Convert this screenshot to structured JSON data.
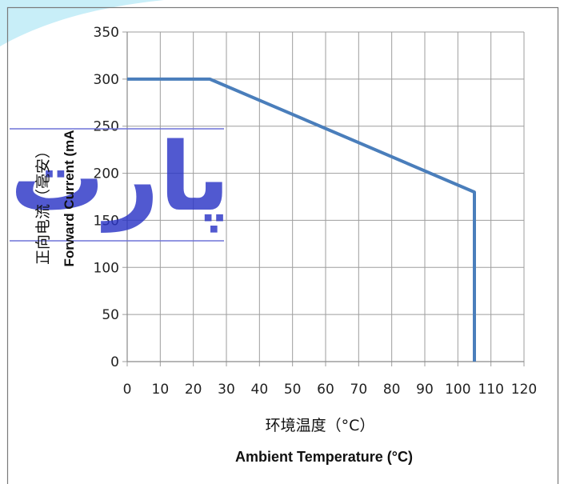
{
  "chart_data": {
    "type": "line",
    "xlabel_zh": "环境温度（°C）",
    "xlabel_en": "Ambient Temperature (°C)",
    "ylabel_zh": "正向电流（毫安）",
    "ylabel_en": "Forward Current (mA",
    "xlim": [
      0,
      120
    ],
    "ylim": [
      0,
      350
    ],
    "xticks": [
      0,
      10,
      20,
      30,
      40,
      50,
      60,
      70,
      80,
      90,
      100,
      110,
      120
    ],
    "yticks": [
      0,
      50,
      100,
      150,
      200,
      250,
      300,
      350
    ],
    "grid": true,
    "series": [
      {
        "x": [
          0,
          25,
          105,
          105
        ],
        "y": [
          300,
          300,
          180,
          0
        ],
        "color": "#4a7ebb"
      }
    ]
  },
  "colors": {
    "line": "#4a7ebb",
    "grid": "#9e9e9e",
    "frame": "#7a7a7a",
    "watermark_blue": "#2b35c6",
    "accent_cyan": "#bfeaf5"
  },
  "watermark": {
    "text": "پارت"
  }
}
